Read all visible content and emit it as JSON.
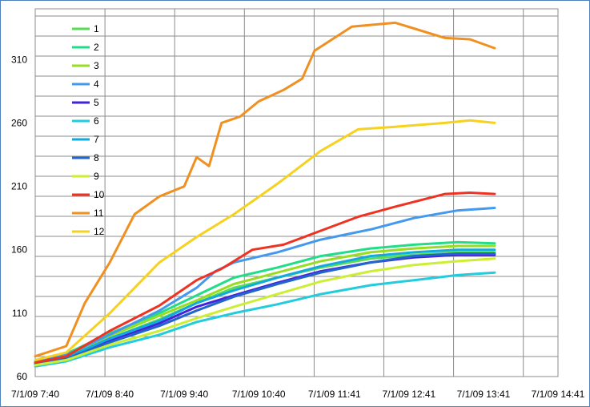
{
  "chart_data": {
    "type": "line",
    "title": "",
    "xlabel": "",
    "ylabel": "",
    "ylim": [
      60,
      350
    ],
    "yticks": [
      60,
      110,
      160,
      210,
      260,
      310
    ],
    "xlim": [
      "7/1/09 7:40",
      "7/1/09 14:41"
    ],
    "xticks": [
      "7/1/09 7:40",
      "7/1/09 8:40",
      "7/1/09 9:40",
      "7/1/09 10:40",
      "7/1/09 11:41",
      "7/1/09 12:41",
      "7/1/09 13:41",
      "7/1/09 14:41"
    ],
    "grid": true,
    "legend_position": "top-left",
    "series": [
      {
        "name": "1",
        "color": "#55dd55",
        "points": [
          {
            "x": "7/1/09 7:40",
            "y": 71
          },
          {
            "x": "7/1/09 8:05",
            "y": 76
          },
          {
            "x": "7/1/09 8:40",
            "y": 90
          },
          {
            "x": "7/1/09 9:20",
            "y": 105
          },
          {
            "x": "7/1/09 9:50",
            "y": 118
          },
          {
            "x": "7/1/09 10:20",
            "y": 130
          },
          {
            "x": "7/1/09 10:55",
            "y": 138
          },
          {
            "x": "7/1/09 11:30",
            "y": 146
          },
          {
            "x": "7/1/09 12:10",
            "y": 153
          },
          {
            "x": "7/1/09 12:45",
            "y": 156
          },
          {
            "x": "7/1/09 13:20",
            "y": 158
          },
          {
            "x": "7/1/09 13:50",
            "y": 158
          }
        ]
      },
      {
        "name": "2",
        "color": "#22dd88",
        "points": [
          {
            "x": "7/1/09 7:40",
            "y": 72
          },
          {
            "x": "7/1/09 8:05",
            "y": 78
          },
          {
            "x": "7/1/09 8:40",
            "y": 94
          },
          {
            "x": "7/1/09 9:20",
            "y": 110
          },
          {
            "x": "7/1/09 9:50",
            "y": 124
          },
          {
            "x": "7/1/09 10:20",
            "y": 138
          },
          {
            "x": "7/1/09 10:55",
            "y": 146
          },
          {
            "x": "7/1/09 11:30",
            "y": 155
          },
          {
            "x": "7/1/09 12:10",
            "y": 161
          },
          {
            "x": "7/1/09 12:45",
            "y": 164
          },
          {
            "x": "7/1/09 13:20",
            "y": 166
          },
          {
            "x": "7/1/09 13:50",
            "y": 165
          }
        ]
      },
      {
        "name": "3",
        "color": "#99dd22",
        "points": [
          {
            "x": "7/1/09 7:40",
            "y": 70
          },
          {
            "x": "7/1/09 8:05",
            "y": 75
          },
          {
            "x": "7/1/09 8:40",
            "y": 92
          },
          {
            "x": "7/1/09 9:20",
            "y": 108
          },
          {
            "x": "7/1/09 9:50",
            "y": 120
          },
          {
            "x": "7/1/09 10:20",
            "y": 133
          },
          {
            "x": "7/1/09 10:55",
            "y": 142
          },
          {
            "x": "7/1/09 11:30",
            "y": 151
          },
          {
            "x": "7/1/09 12:10",
            "y": 158
          },
          {
            "x": "7/1/09 12:45",
            "y": 161
          },
          {
            "x": "7/1/09 13:20",
            "y": 163
          },
          {
            "x": "7/1/09 13:50",
            "y": 163
          }
        ]
      },
      {
        "name": "4",
        "color": "#4499ee",
        "points": [
          {
            "x": "7/1/09 7:40",
            "y": 71
          },
          {
            "x": "7/1/09 8:05",
            "y": 77
          },
          {
            "x": "7/1/09 8:40",
            "y": 93
          },
          {
            "x": "7/1/09 9:20",
            "y": 112
          },
          {
            "x": "7/1/09 9:50",
            "y": 130
          },
          {
            "x": "7/1/09 10:05",
            "y": 143
          },
          {
            "x": "7/1/09 10:20",
            "y": 150
          },
          {
            "x": "7/1/09 10:55",
            "y": 158
          },
          {
            "x": "7/1/09 11:30",
            "y": 168
          },
          {
            "x": "7/1/09 12:10",
            "y": 176
          },
          {
            "x": "7/1/09 12:45",
            "y": 185
          },
          {
            "x": "7/1/09 13:20",
            "y": 191
          },
          {
            "x": "7/1/09 13:50",
            "y": 193
          }
        ]
      },
      {
        "name": "5",
        "color": "#4422dd",
        "points": [
          {
            "x": "7/1/09 7:40",
            "y": 70
          },
          {
            "x": "7/1/09 8:05",
            "y": 74
          },
          {
            "x": "7/1/09 8:40",
            "y": 88
          },
          {
            "x": "7/1/09 9:20",
            "y": 102
          },
          {
            "x": "7/1/09 9:50",
            "y": 115
          },
          {
            "x": "7/1/09 10:20",
            "y": 124
          },
          {
            "x": "7/1/09 10:55",
            "y": 134
          },
          {
            "x": "7/1/09 11:30",
            "y": 143
          },
          {
            "x": "7/1/09 12:10",
            "y": 150
          },
          {
            "x": "7/1/09 12:45",
            "y": 154
          },
          {
            "x": "7/1/09 13:20",
            "y": 156
          },
          {
            "x": "7/1/09 13:50",
            "y": 156
          }
        ]
      },
      {
        "name": "6",
        "color": "#22ccdd",
        "points": [
          {
            "x": "7/1/09 7:40",
            "y": 68
          },
          {
            "x": "7/1/09 8:05",
            "y": 72
          },
          {
            "x": "7/1/09 8:40",
            "y": 83
          },
          {
            "x": "7/1/09 9:20",
            "y": 93
          },
          {
            "x": "7/1/09 9:50",
            "y": 103
          },
          {
            "x": "7/1/09 10:20",
            "y": 110
          },
          {
            "x": "7/1/09 10:55",
            "y": 117
          },
          {
            "x": "7/1/09 11:30",
            "y": 125
          },
          {
            "x": "7/1/09 12:10",
            "y": 132
          },
          {
            "x": "7/1/09 12:45",
            "y": 136
          },
          {
            "x": "7/1/09 13:20",
            "y": 140
          },
          {
            "x": "7/1/09 13:50",
            "y": 142
          }
        ]
      },
      {
        "name": "7",
        "color": "#11aadd",
        "points": [
          {
            "x": "7/1/09 7:40",
            "y": 70
          },
          {
            "x": "7/1/09 8:05",
            "y": 75
          },
          {
            "x": "7/1/09 8:40",
            "y": 90
          },
          {
            "x": "7/1/09 9:20",
            "y": 104
          },
          {
            "x": "7/1/09 9:50",
            "y": 118
          },
          {
            "x": "7/1/09 10:20",
            "y": 128
          },
          {
            "x": "7/1/09 10:55",
            "y": 138
          },
          {
            "x": "7/1/09 11:30",
            "y": 147
          },
          {
            "x": "7/1/09 12:10",
            "y": 155
          },
          {
            "x": "7/1/09 12:45",
            "y": 158
          },
          {
            "x": "7/1/09 13:20",
            "y": 160
          },
          {
            "x": "7/1/09 13:50",
            "y": 160
          }
        ]
      },
      {
        "name": "8",
        "color": "#2266cc",
        "points": [
          {
            "x": "7/1/09 7:40",
            "y": 70
          },
          {
            "x": "7/1/09 8:05",
            "y": 74
          },
          {
            "x": "7/1/09 8:40",
            "y": 87
          },
          {
            "x": "7/1/09 9:20",
            "y": 100
          },
          {
            "x": "7/1/09 9:50",
            "y": 112
          },
          {
            "x": "7/1/09 10:20",
            "y": 123
          },
          {
            "x": "7/1/09 10:55",
            "y": 133
          },
          {
            "x": "7/1/09 11:30",
            "y": 142
          },
          {
            "x": "7/1/09 12:10",
            "y": 150
          },
          {
            "x": "7/1/09 12:45",
            "y": 155
          },
          {
            "x": "7/1/09 13:20",
            "y": 157
          },
          {
            "x": "7/1/09 13:50",
            "y": 157
          }
        ]
      },
      {
        "name": "9",
        "color": "#ccee33",
        "points": [
          {
            "x": "7/1/09 7:40",
            "y": 69
          },
          {
            "x": "7/1/09 8:05",
            "y": 73
          },
          {
            "x": "7/1/09 8:40",
            "y": 85
          },
          {
            "x": "7/1/09 9:20",
            "y": 96
          },
          {
            "x": "7/1/09 9:50",
            "y": 106
          },
          {
            "x": "7/1/09 10:20",
            "y": 115
          },
          {
            "x": "7/1/09 10:55",
            "y": 125
          },
          {
            "x": "7/1/09 11:30",
            "y": 135
          },
          {
            "x": "7/1/09 12:10",
            "y": 143
          },
          {
            "x": "7/1/09 12:45",
            "y": 148
          },
          {
            "x": "7/1/09 13:20",
            "y": 151
          },
          {
            "x": "7/1/09 13:50",
            "y": 153
          }
        ]
      },
      {
        "name": "10",
        "color": "#ee3322",
        "points": [
          {
            "x": "7/1/09 7:40",
            "y": 71
          },
          {
            "x": "7/1/09 8:05",
            "y": 76
          },
          {
            "x": "7/1/09 8:40",
            "y": 96
          },
          {
            "x": "7/1/09 9:20",
            "y": 116
          },
          {
            "x": "7/1/09 9:50",
            "y": 136
          },
          {
            "x": "7/1/09 10:10",
            "y": 145
          },
          {
            "x": "7/1/09 10:35",
            "y": 160
          },
          {
            "x": "7/1/09 11:00",
            "y": 164
          },
          {
            "x": "7/1/09 11:30",
            "y": 175
          },
          {
            "x": "7/1/09 12:00",
            "y": 186
          },
          {
            "x": "7/1/09 12:30",
            "y": 194
          },
          {
            "x": "7/1/09 13:10",
            "y": 204
          },
          {
            "x": "7/1/09 13:30",
            "y": 205
          },
          {
            "x": "7/1/09 13:50",
            "y": 204
          }
        ]
      },
      {
        "name": "11",
        "color": "#f09020",
        "points": [
          {
            "x": "7/1/09 7:40",
            "y": 76
          },
          {
            "x": "7/1/09 8:05",
            "y": 84
          },
          {
            "x": "7/1/09 8:20",
            "y": 118
          },
          {
            "x": "7/1/09 8:40",
            "y": 150
          },
          {
            "x": "7/1/09 9:00",
            "y": 188
          },
          {
            "x": "7/1/09 9:20",
            "y": 202
          },
          {
            "x": "7/1/09 9:40",
            "y": 210
          },
          {
            "x": "7/1/09 9:50",
            "y": 233
          },
          {
            "x": "7/1/09 10:00",
            "y": 226
          },
          {
            "x": "7/1/09 10:10",
            "y": 260
          },
          {
            "x": "7/1/09 10:25",
            "y": 265
          },
          {
            "x": "7/1/09 10:40",
            "y": 277
          },
          {
            "x": "7/1/09 11:00",
            "y": 286
          },
          {
            "x": "7/1/09 11:15",
            "y": 295
          },
          {
            "x": "7/1/09 11:25",
            "y": 317
          },
          {
            "x": "7/1/09 11:55",
            "y": 336
          },
          {
            "x": "7/1/09 12:30",
            "y": 339
          },
          {
            "x": "7/1/09 13:10",
            "y": 327
          },
          {
            "x": "7/1/09 13:30",
            "y": 326
          },
          {
            "x": "7/1/09 13:50",
            "y": 319
          }
        ]
      },
      {
        "name": "12",
        "color": "#f6d21e",
        "points": [
          {
            "x": "7/1/09 7:40",
            "y": 73
          },
          {
            "x": "7/1/09 8:05",
            "y": 79
          },
          {
            "x": "7/1/09 8:40",
            "y": 110
          },
          {
            "x": "7/1/09 9:20",
            "y": 150
          },
          {
            "x": "7/1/09 9:50",
            "y": 170
          },
          {
            "x": "7/1/09 10:20",
            "y": 188
          },
          {
            "x": "7/1/09 10:55",
            "y": 212
          },
          {
            "x": "7/1/09 11:30",
            "y": 238
          },
          {
            "x": "7/1/09 12:00",
            "y": 255
          },
          {
            "x": "7/1/09 12:30",
            "y": 257
          },
          {
            "x": "7/1/09 13:10",
            "y": 260
          },
          {
            "x": "7/1/09 13:30",
            "y": 262
          },
          {
            "x": "7/1/09 13:50",
            "y": 260
          }
        ]
      }
    ]
  }
}
